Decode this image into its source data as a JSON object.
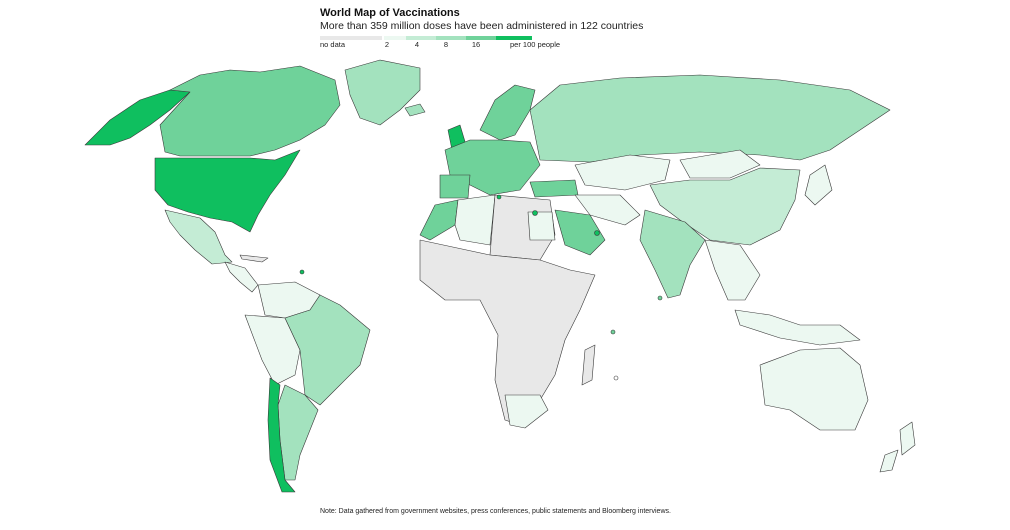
{
  "header": {
    "title": "World Map of Vaccinations",
    "subtitle": "More than 359 million doses have been administered in 122 countries"
  },
  "legend": {
    "no_data_label": "no data",
    "unit_label": "per 100 people",
    "ticks": [
      "2",
      "4",
      "8",
      "16"
    ],
    "colors": {
      "no_data": "#e8e8e8",
      "lt2": "#ecf8f1",
      "b2_4": "#c4ecd5",
      "b4_8": "#a3e2be",
      "b8_16": "#6fd29a",
      "gt16": "#0fbf5f"
    }
  },
  "note": "Note: Data gathered from government websites, press conferences, public statements and Bloomberg interviews."
}
